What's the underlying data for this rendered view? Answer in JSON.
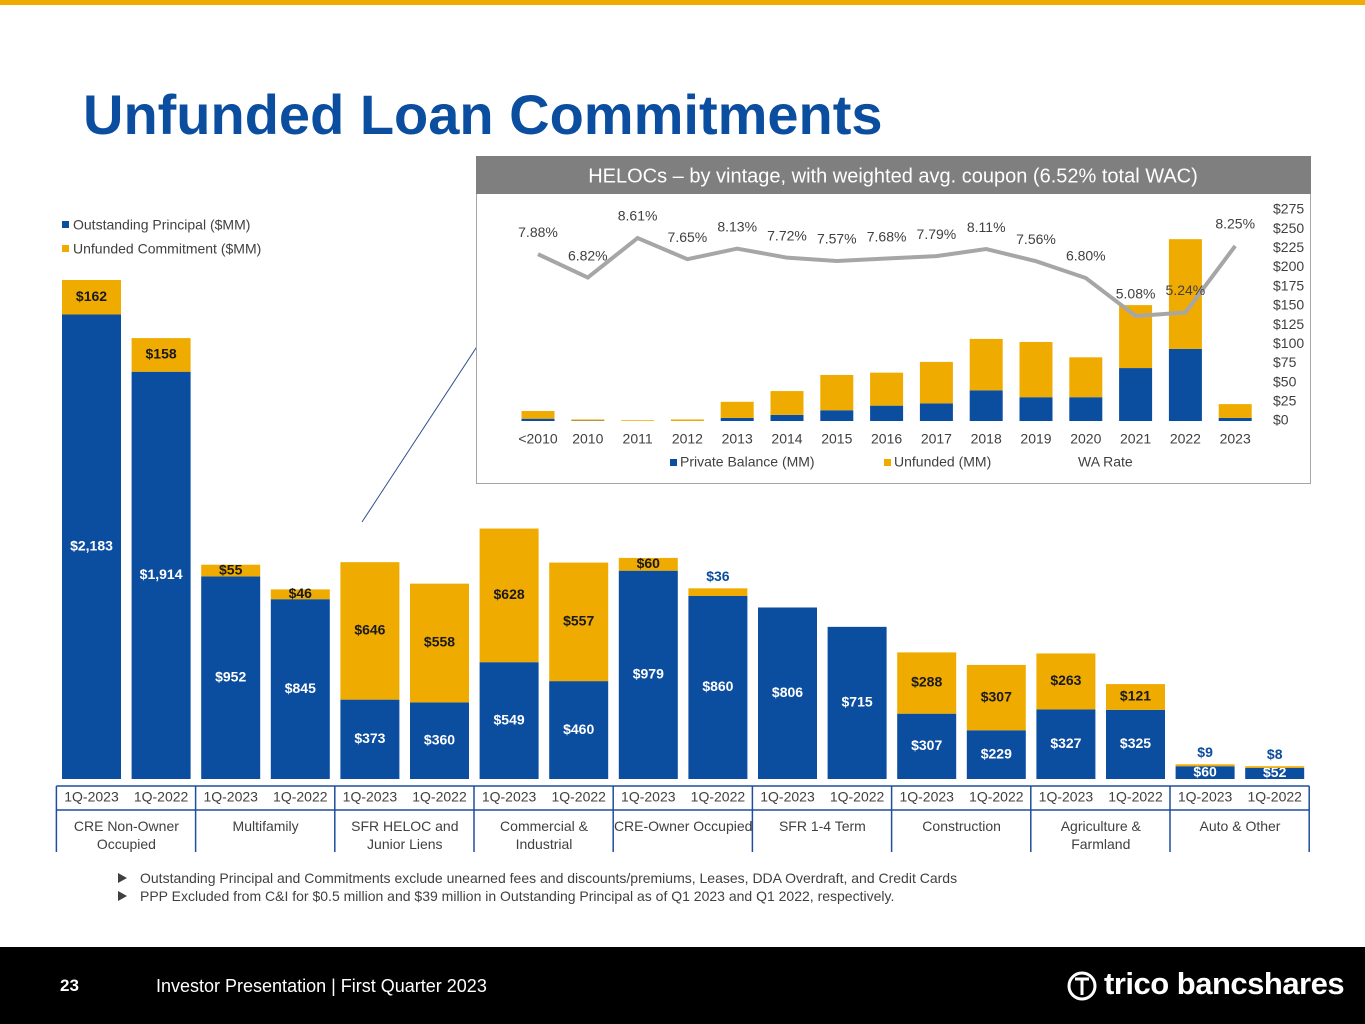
{
  "header": {
    "title": "Unfunded Loan Commitments"
  },
  "chart_data": [
    {
      "type": "bar",
      "stacked": true,
      "categories": [
        "1Q-2023",
        "1Q-2022",
        "1Q-2023",
        "1Q-2022",
        "1Q-2023",
        "1Q-2022",
        "1Q-2023",
        "1Q-2022",
        "1Q-2023",
        "1Q-2022",
        "1Q-2023",
        "1Q-2022",
        "1Q-2023",
        "1Q-2022",
        "1Q-2023",
        "1Q-2022",
        "1Q-2023",
        "1Q-2022"
      ],
      "groups": [
        "CRE Non-Owner Occupied",
        "Multifamily",
        "SFR HELOC and Junior Liens",
        "Commercial & Industrial",
        "CRE-Owner Occupied",
        "SFR 1-4 Term",
        "Construction",
        "Agriculture & Farmland",
        "Auto & Other"
      ],
      "series": [
        {
          "name": "Outstanding Principal ($MM)",
          "color": "#0b4d9f",
          "values": [
            2183,
            1914,
            952,
            845,
            373,
            360,
            549,
            460,
            979,
            860,
            806,
            715,
            307,
            229,
            327,
            325,
            60,
            52
          ],
          "value_labels": [
            "$2,183",
            "$1,914",
            "$952",
            "$845",
            "$373",
            "$360",
            "$549",
            "$460",
            "$979",
            "$860",
            "$806",
            "$715",
            "$307",
            "$229",
            "$327",
            "$325",
            "$60",
            "$52"
          ]
        },
        {
          "name": "Unfunded Commitment ($MM)",
          "color": "#f0ab00",
          "values": [
            162,
            158,
            55,
            46,
            646,
            558,
            628,
            557,
            60,
            36,
            null,
            null,
            288,
            307,
            263,
            121,
            9,
            8
          ],
          "value_labels": [
            "$162",
            "$158",
            "$55",
            "$46",
            "$646",
            "$558",
            "$628",
            "$557",
            "$60",
            "$36",
            null,
            null,
            "$288",
            "$307",
            "$263",
            "$121",
            "$9",
            "$8"
          ]
        }
      ]
    },
    {
      "type": "bar",
      "stacked": true,
      "title": "HELOCs – by vintage, with weighted avg. coupon (6.52% total WAC)",
      "categories": [
        "<2010",
        "2010",
        "2011",
        "2012",
        "2013",
        "2014",
        "2015",
        "2016",
        "2017",
        "2018",
        "2019",
        "2020",
        "2021",
        "2022",
        "2023"
      ],
      "series": [
        {
          "name": "Private Balance (MM)",
          "color": "#0b4d9f",
          "values": [
            3,
            0.5,
            0,
            0,
            4,
            8,
            14,
            20,
            23,
            40,
            31,
            31,
            69,
            94,
            4
          ]
        },
        {
          "name": "Unfunded (MM)",
          "color": "#f0ab00",
          "values": [
            10,
            1.5,
            1,
            2,
            21,
            31,
            46,
            43,
            54,
            67,
            72,
            52,
            82,
            143,
            18
          ]
        },
        {
          "name": "WA Rate",
          "type": "line",
          "axis": "y2",
          "color": "#a6a6a6",
          "values": [
            7.88,
            6.82,
            8.61,
            7.65,
            8.13,
            7.72,
            7.57,
            7.68,
            7.79,
            8.11,
            7.56,
            6.8,
            5.08,
            5.24,
            8.25
          ],
          "value_labels": [
            "7.88%",
            "6.82%",
            "8.61%",
            "7.65%",
            "8.13%",
            "7.72%",
            "7.57%",
            "7.68%",
            "7.79%",
            "8.11%",
            "7.56%",
            "6.80%",
            "5.08%",
            "5.24%",
            "8.25%"
          ]
        }
      ],
      "ylim": [
        0,
        275
      ],
      "yticks": [
        {
          "value": 0,
          "label": "$0"
        },
        {
          "value": 25,
          "label": "$25"
        },
        {
          "value": 50,
          "label": "$50"
        },
        {
          "value": 75,
          "label": "$75"
        },
        {
          "value": 100,
          "label": "$100"
        },
        {
          "value": 125,
          "label": "$125"
        },
        {
          "value": 150,
          "label": "$150"
        },
        {
          "value": 175,
          "label": "$175"
        },
        {
          "value": 200,
          "label": "$200"
        },
        {
          "value": 225,
          "label": "$225"
        },
        {
          "value": 250,
          "label": "$250"
        },
        {
          "value": 275,
          "label": "$275"
        }
      ]
    }
  ],
  "notes": [
    "Outstanding Principal and Commitments exclude unearned fees and discounts/premiums, Leases, DDA Overdraft, and Credit Cards",
    "PPP Excluded from C&I for $0.5 million and $39 million in Outstanding Principal as of Q1 2023 and Q1 2022, respectively."
  ],
  "footer": {
    "page": "23",
    "text": "Investor Presentation | First Quarter 2023",
    "logo": "trico bancshares"
  }
}
